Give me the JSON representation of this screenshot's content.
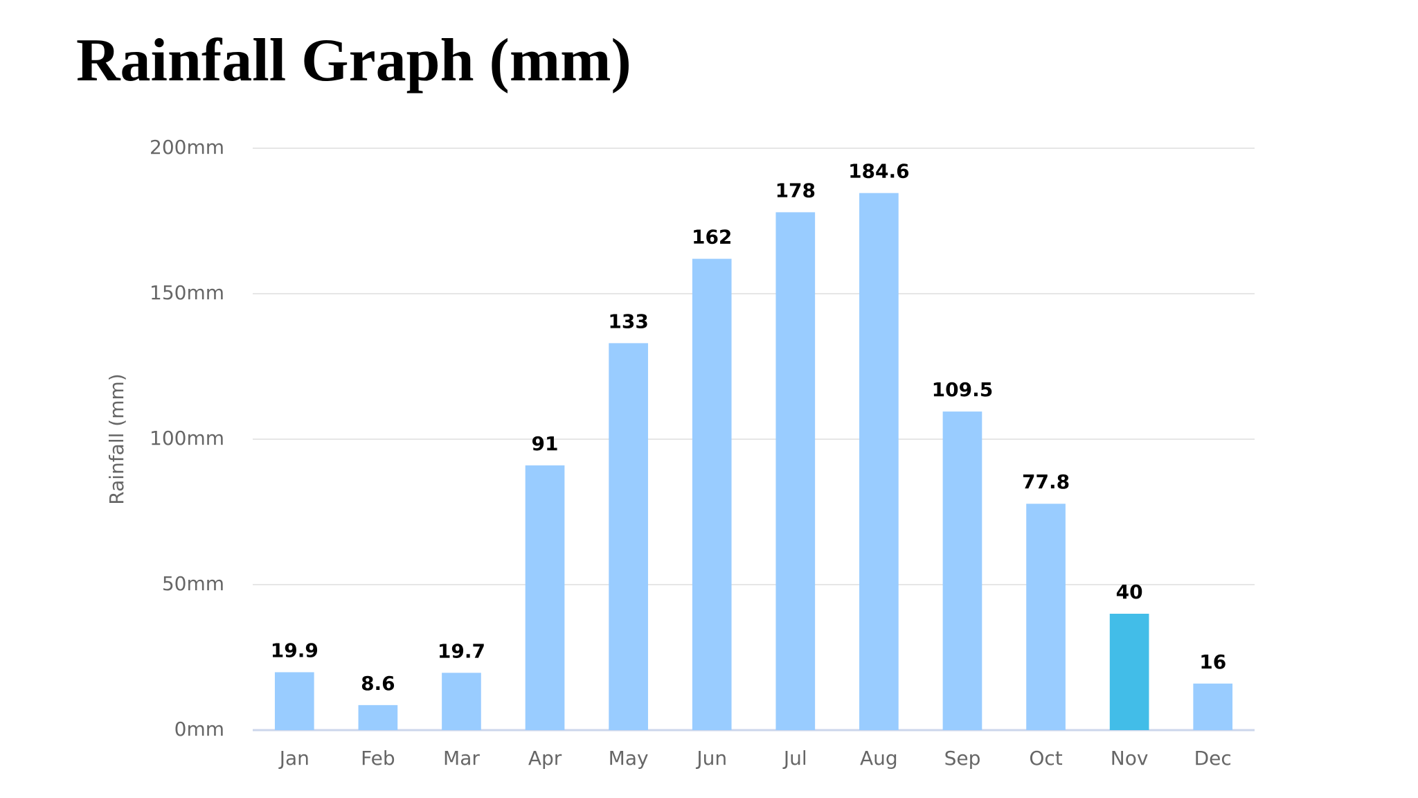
{
  "chart_data": {
    "type": "bar",
    "title": "Rainfall Graph (mm)",
    "y_label": "Rainfall (mm)",
    "categories": [
      "Jan",
      "Feb",
      "Mar",
      "Apr",
      "May",
      "Jun",
      "Jul",
      "Aug",
      "Sep",
      "Oct",
      "Nov",
      "Dec"
    ],
    "values": [
      19.9,
      8.6,
      19.7,
      91,
      133,
      162,
      178,
      184.6,
      109.5,
      77.8,
      40,
      16
    ],
    "colors": [
      "#99ccff",
      "#99ccff",
      "#99ccff",
      "#99ccff",
      "#99ccff",
      "#99ccff",
      "#99ccff",
      "#99ccff",
      "#99ccff",
      "#99ccff",
      "#42bde8",
      "#99ccff"
    ],
    "ylim": [
      0,
      200
    ],
    "yticks": [
      {
        "value": 0,
        "label": "0mm"
      },
      {
        "value": 50,
        "label": "50mm"
      },
      {
        "value": 100,
        "label": "100mm"
      },
      {
        "value": 150,
        "label": "150mm"
      },
      {
        "value": 200,
        "label": "200mm"
      }
    ],
    "grid": true
  }
}
